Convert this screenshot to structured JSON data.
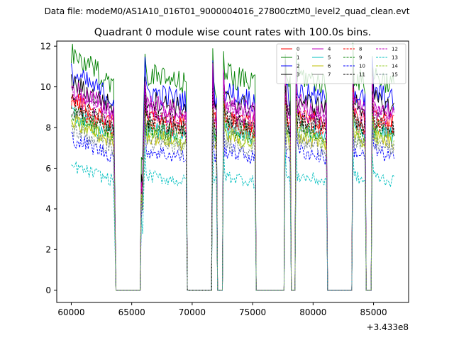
{
  "figure_title": "Data file: modeM0/AS1A10_016T01_9000004016_27800cztM0_level2_quad_clean.evt",
  "chart_data": {
    "type": "line",
    "title": "Quadrant 0 module wise count rates with 100.0s bins.",
    "xlabel": "",
    "ylabel": "",
    "x_offset_label": "+3.433e8",
    "xlim": [
      58800,
      87900
    ],
    "ylim": [
      -0.6,
      12.25
    ],
    "x_ticks": [
      60000,
      65000,
      70000,
      75000,
      80000,
      85000
    ],
    "x_tick_labels": [
      "60000",
      "65000",
      "70000",
      "75000",
      "80000",
      "85000"
    ],
    "y_ticks": [
      0,
      2,
      4,
      6,
      8,
      10,
      12
    ],
    "y_tick_labels": [
      "0",
      "2",
      "4",
      "6",
      "8",
      "10",
      "12"
    ],
    "legend_location": "top-right",
    "segments": [
      {
        "start": 60000,
        "end": 63500,
        "plateau": true
      },
      {
        "start": 63700,
        "end": 65700,
        "plateau": false
      },
      {
        "start": 65800,
        "end": 65900,
        "plateau": false,
        "spike": true
      },
      {
        "start": 66100,
        "end": 69500,
        "plateau": true
      },
      {
        "start": 69600,
        "end": 71600,
        "plateau": false
      },
      {
        "start": 71700,
        "end": 72000,
        "plateau": true
      },
      {
        "start": 72100,
        "end": 72500,
        "plateau": false
      },
      {
        "start": 72600,
        "end": 75200,
        "plateau": true
      },
      {
        "start": 75300,
        "end": 77600,
        "plateau": false
      },
      {
        "start": 77700,
        "end": 78100,
        "plateau": true
      },
      {
        "start": 78200,
        "end": 78500,
        "plateau": false
      },
      {
        "start": 78600,
        "end": 81100,
        "plateau": true
      },
      {
        "start": 81200,
        "end": 83200,
        "plateau": false
      },
      {
        "start": 83300,
        "end": 84300,
        "plateau": true
      },
      {
        "start": 84400,
        "end": 84800,
        "plateau": false
      },
      {
        "start": 84900,
        "end": 86700,
        "plateau": true
      }
    ],
    "series": [
      {
        "name": "0",
        "color": "#ff0000",
        "dash": "solid",
        "level": 8.3
      },
      {
        "name": "1",
        "color": "#008000",
        "dash": "solid",
        "level": 10.2
      },
      {
        "name": "2",
        "color": "#0000ff",
        "dash": "solid",
        "level": 9.4
      },
      {
        "name": "3",
        "color": "#000000",
        "dash": "solid",
        "level": 9.0
      },
      {
        "name": "4",
        "color": "#bf00bf",
        "dash": "solid",
        "level": 8.8
      },
      {
        "name": "5",
        "color": "#00bfbf",
        "dash": "solid",
        "level": 7.6
      },
      {
        "name": "6",
        "color": "#bfbf00",
        "dash": "solid",
        "level": 7.3
      },
      {
        "name": "7",
        "color": "#808080",
        "dash": "solid",
        "level": 7.9
      },
      {
        "name": "8",
        "color": "#ff0000",
        "dash": "dashed",
        "level": 8.0
      },
      {
        "name": "9",
        "color": "#008000",
        "dash": "dashed",
        "level": 7.7
      },
      {
        "name": "10",
        "color": "#0000ff",
        "dash": "dashed",
        "level": 6.6
      },
      {
        "name": "11",
        "color": "#000000",
        "dash": "dashed",
        "level": 8.1
      },
      {
        "name": "12",
        "color": "#bf00bf",
        "dash": "dashed",
        "level": 8.5
      },
      {
        "name": "13",
        "color": "#00bfbf",
        "dash": "dashed",
        "level": 5.4
      },
      {
        "name": "14",
        "color": "#9acd32",
        "dash": "dashed",
        "level": 7.4
      },
      {
        "name": "15",
        "color": "#708090",
        "dash": "dashed",
        "level": 7.0
      }
    ]
  }
}
